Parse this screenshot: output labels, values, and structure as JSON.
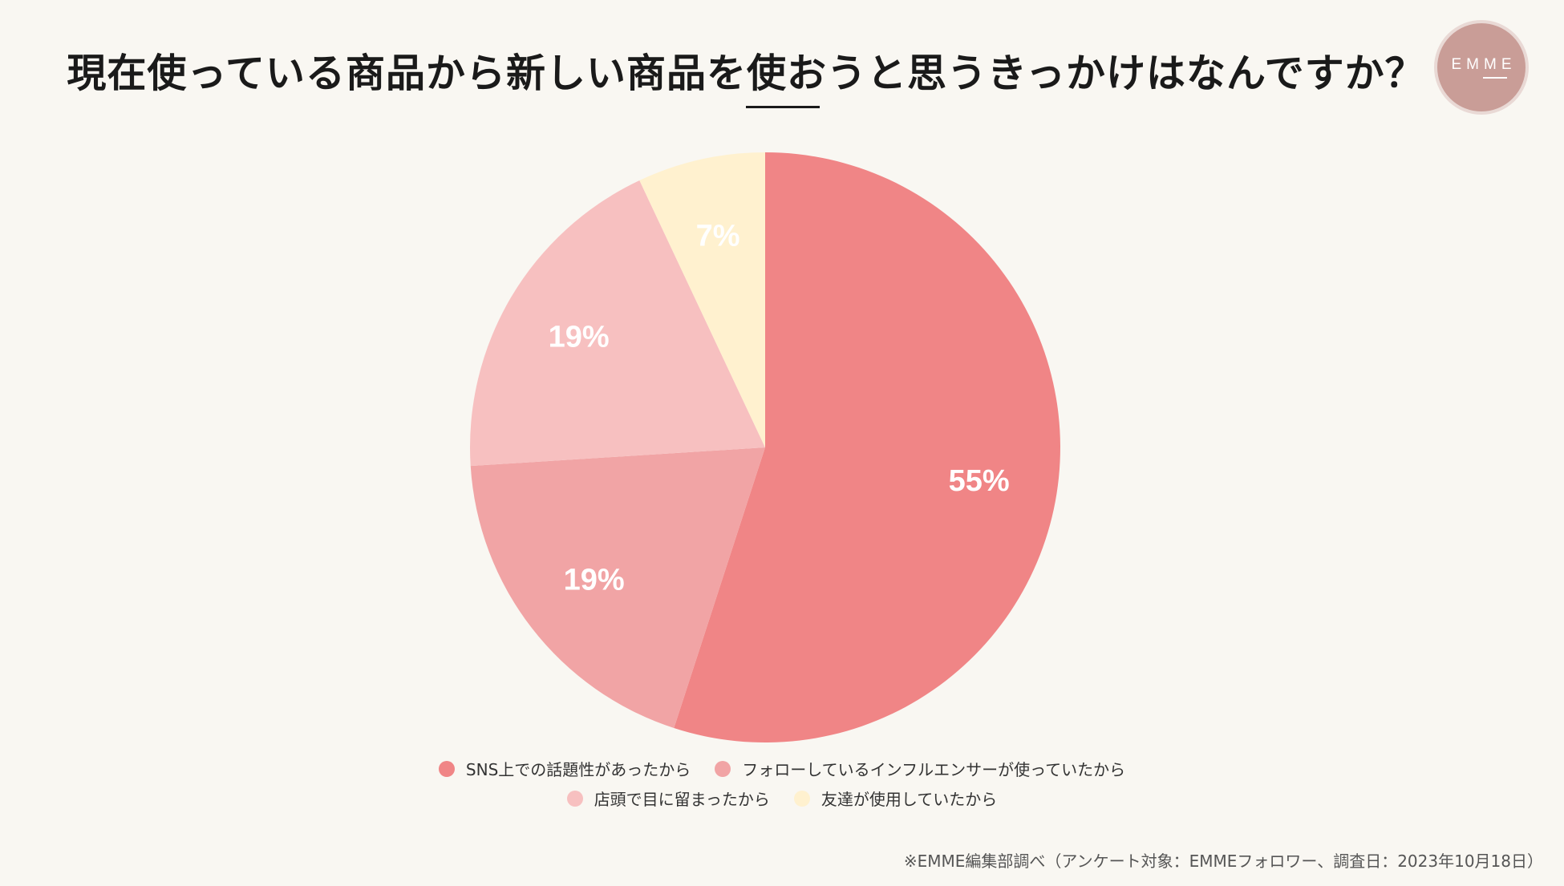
{
  "page": {
    "title": "現在使っている商品から新しい商品を使おうと思うきっかけはなんですか？",
    "logo_text": "EMME",
    "footnote": "※EMME編集部調べ（アンケート対象：EMMEフォロワー、調査日：2023年10月18日）"
  },
  "colors": {
    "background": "#f9f7f2",
    "logo": "#c99d97"
  },
  "chart_data": {
    "type": "pie",
    "title": "現在使っている商品から新しい商品を使おうと思うきっかけはなんですか？",
    "start": "12 o'clock",
    "direction": "clockwise",
    "legend_position": "bottom",
    "slices": [
      {
        "label": "SNS上での話題性があったから",
        "value": 55,
        "display": "55%",
        "color": "#f08586"
      },
      {
        "label": "フォローしているインフルエンサーが使っていたから",
        "value": 19,
        "display": "19%",
        "color": "#f1a4a5"
      },
      {
        "label": "店頭で目に留まったから",
        "value": 19,
        "display": "19%",
        "color": "#f7c0c0"
      },
      {
        "label": "友達が使用していたから",
        "value": 7,
        "display": "7%",
        "color": "#fff1cf"
      }
    ]
  }
}
